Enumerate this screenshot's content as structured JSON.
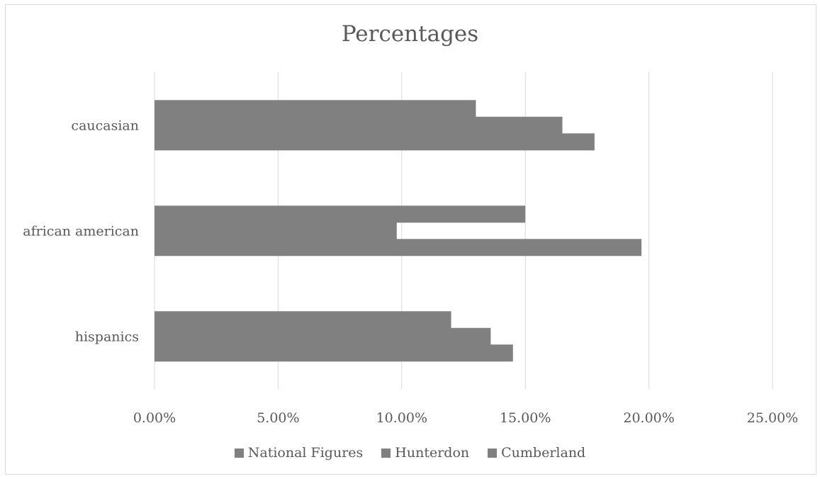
{
  "chart_data": {
    "type": "bar",
    "orientation": "horizontal",
    "title": "Percentages",
    "xlabel": "",
    "ylabel": "",
    "categories": [
      "hispanics",
      "african american",
      "caucasian"
    ],
    "series": [
      {
        "name": "National Figures",
        "values": [
          0.12,
          0.15,
          0.13
        ],
        "color": "#808080"
      },
      {
        "name": "Hunterdon",
        "values": [
          0.136,
          0.098,
          0.165
        ],
        "color": "#808080"
      },
      {
        "name": "Cumberland",
        "values": [
          0.145,
          0.197,
          0.178
        ],
        "color": "#808080"
      }
    ],
    "xlim": [
      0,
      0.25
    ],
    "xticks": [
      0,
      0.05,
      0.1,
      0.15,
      0.2,
      0.25
    ],
    "xtick_labels": [
      "0.00%",
      "5.00%",
      "10.00%",
      "15.00%",
      "20.00%",
      "25.00%"
    ],
    "grid": "vertical",
    "legend_position": "bottom"
  }
}
